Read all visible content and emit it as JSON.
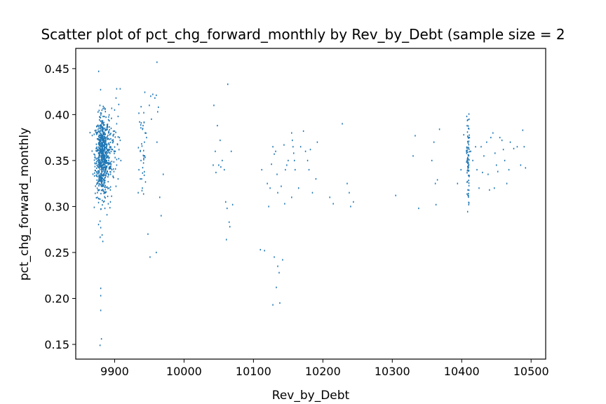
{
  "chart_data": {
    "type": "scatter",
    "title": "Scatter plot of pct_chg_forward_monthly by Rev_by_Debt (sample size = 2",
    "xlabel": "Rev_by_Debt",
    "ylabel": "pct_chg_forward_monthly",
    "xlim": [
      9844,
      10521
    ],
    "ylim": [
      0.134,
      0.472
    ],
    "xticks": [
      9900,
      10000,
      10100,
      10200,
      10300,
      10400,
      10500
    ],
    "yticks": [
      0.15,
      0.2,
      0.25,
      0.3,
      0.35,
      0.4,
      0.45
    ],
    "xtick_labels": [
      "9900",
      "10000",
      "10100",
      "10200",
      "10300",
      "10400",
      "10500"
    ],
    "ytick_labels": [
      "0.15",
      "0.20",
      "0.25",
      "0.30",
      "0.35",
      "0.40",
      "0.45"
    ],
    "grid": false,
    "marker_color": "#1f77b4",
    "points": [
      [
        9877,
        0.447
      ],
      [
        9880,
        0.211
      ],
      [
        9880,
        0.203
      ],
      [
        9880,
        0.187
      ],
      [
        9881,
        0.156
      ],
      [
        9879,
        0.149
      ],
      [
        9879,
        0.284
      ],
      [
        9880,
        0.277
      ],
      [
        9882,
        0.269
      ],
      [
        9883,
        0.262
      ],
      [
        9878,
        0.318
      ],
      [
        9884,
        0.305
      ],
      [
        9886,
        0.298
      ],
      [
        9890,
        0.311
      ],
      [
        9892,
        0.32
      ],
      [
        9894,
        0.305
      ],
      [
        9889,
        0.291
      ],
      [
        9903,
        0.428
      ],
      [
        9908,
        0.428
      ],
      [
        9902,
        0.418
      ],
      [
        9906,
        0.411
      ],
      [
        9900,
        0.405
      ],
      [
        9905,
        0.398
      ],
      [
        9903,
        0.39
      ],
      [
        9900,
        0.382
      ],
      [
        9907,
        0.375
      ],
      [
        9904,
        0.368
      ],
      [
        9901,
        0.36
      ],
      [
        9906,
        0.352
      ],
      [
        9903,
        0.345
      ],
      [
        9899,
        0.338
      ],
      [
        9905,
        0.33
      ],
      [
        9902,
        0.322
      ],
      [
        9908,
        0.372
      ],
      [
        9909,
        0.35
      ],
      [
        9895,
        0.385
      ],
      [
        9896,
        0.34
      ],
      [
        9897,
        0.362
      ],
      [
        9893,
        0.378
      ],
      [
        9936,
        0.392
      ],
      [
        9937,
        0.36
      ],
      [
        9938,
        0.35
      ],
      [
        9939,
        0.33
      ],
      [
        9940,
        0.32
      ],
      [
        9941,
        0.388
      ],
      [
        9942,
        0.402
      ],
      [
        9943,
        0.37
      ],
      [
        9944,
        0.38
      ],
      [
        9935,
        0.34
      ],
      [
        9934,
        0.315
      ],
      [
        9937,
        0.33
      ],
      [
        9952,
        0.42
      ],
      [
        9955,
        0.422
      ],
      [
        9958,
        0.418
      ],
      [
        9960,
        0.421
      ],
      [
        9961,
        0.457
      ],
      [
        9962,
        0.403
      ],
      [
        9963,
        0.408
      ],
      [
        9950,
        0.41
      ],
      [
        9953,
        0.395
      ],
      [
        9951,
        0.245
      ],
      [
        9960,
        0.25
      ],
      [
        9967,
        0.29
      ],
      [
        9965,
        0.31
      ],
      [
        9970,
        0.335
      ],
      [
        9961,
        0.37
      ],
      [
        9948,
        0.27
      ],
      [
        9946,
        0.375
      ],
      [
        10043,
        0.41
      ],
      [
        10048,
        0.388
      ],
      [
        10050,
        0.345
      ],
      [
        10052,
        0.372
      ],
      [
        10055,
        0.35
      ],
      [
        10045,
        0.36
      ],
      [
        10042,
        0.345
      ],
      [
        10058,
        0.34
      ],
      [
        10060,
        0.305
      ],
      [
        10061,
        0.264
      ],
      [
        10062,
        0.298
      ],
      [
        10063,
        0.433
      ],
      [
        10065,
        0.283
      ],
      [
        10066,
        0.278
      ],
      [
        10068,
        0.36
      ],
      [
        10070,
        0.302
      ],
      [
        10046,
        0.337
      ],
      [
        10053,
        0.343
      ],
      [
        10110,
        0.253
      ],
      [
        10116,
        0.252
      ],
      [
        10112,
        0.34
      ],
      [
        10120,
        0.325
      ],
      [
        10122,
        0.3
      ],
      [
        10124,
        0.32
      ],
      [
        10126,
        0.346
      ],
      [
        10128,
        0.365
      ],
      [
        10130,
        0.357
      ],
      [
        10132,
        0.36
      ],
      [
        10134,
        0.335
      ],
      [
        10135,
        0.315
      ],
      [
        10128,
        0.193
      ],
      [
        10133,
        0.212
      ],
      [
        10138,
        0.195
      ],
      [
        10137,
        0.228
      ],
      [
        10135,
        0.235
      ],
      [
        10130,
        0.245
      ],
      [
        10142,
        0.242
      ],
      [
        10146,
        0.34
      ],
      [
        10148,
        0.345
      ],
      [
        10150,
        0.35
      ],
      [
        10144,
        0.367
      ],
      [
        10140,
        0.322
      ],
      [
        10155,
        0.38
      ],
      [
        10156,
        0.372
      ],
      [
        10157,
        0.365
      ],
      [
        10158,
        0.358
      ],
      [
        10159,
        0.35
      ],
      [
        10160,
        0.34
      ],
      [
        10155,
        0.31
      ],
      [
        10165,
        0.32
      ],
      [
        10172,
        0.382
      ],
      [
        10168,
        0.365
      ],
      [
        10175,
        0.36
      ],
      [
        10178,
        0.35
      ],
      [
        10180,
        0.34
      ],
      [
        10182,
        0.362
      ],
      [
        10185,
        0.315
      ],
      [
        10190,
        0.33
      ],
      [
        10192,
        0.37
      ],
      [
        10145,
        0.303
      ],
      [
        10210,
        0.31
      ],
      [
        10215,
        0.303
      ],
      [
        10228,
        0.39
      ],
      [
        10235,
        0.325
      ],
      [
        10238,
        0.315
      ],
      [
        10240,
        0.3
      ],
      [
        10244,
        0.305
      ],
      [
        10305,
        0.312
      ],
      [
        10330,
        0.355
      ],
      [
        10333,
        0.377
      ],
      [
        10338,
        0.298
      ],
      [
        10357,
        0.35
      ],
      [
        10362,
        0.325
      ],
      [
        10365,
        0.329
      ],
      [
        10368,
        0.384
      ],
      [
        10363,
        0.302
      ],
      [
        10360,
        0.37
      ],
      [
        10394,
        0.325
      ],
      [
        10399,
        0.34
      ],
      [
        10403,
        0.378
      ],
      [
        10413,
        0.36
      ],
      [
        10416,
        0.35
      ],
      [
        10420,
        0.365
      ],
      [
        10422,
        0.34
      ],
      [
        10425,
        0.32
      ],
      [
        10428,
        0.365
      ],
      [
        10430,
        0.337
      ],
      [
        10432,
        0.355
      ],
      [
        10436,
        0.37
      ],
      [
        10438,
        0.335
      ],
      [
        10440,
        0.318
      ],
      [
        10442,
        0.375
      ],
      [
        10445,
        0.38
      ],
      [
        10448,
        0.358
      ],
      [
        10450,
        0.345
      ],
      [
        10452,
        0.338
      ],
      [
        10455,
        0.375
      ],
      [
        10458,
        0.372
      ],
      [
        10460,
        0.362
      ],
      [
        10462,
        0.35
      ],
      [
        10465,
        0.325
      ],
      [
        10468,
        0.34
      ],
      [
        10470,
        0.37
      ],
      [
        10475,
        0.363
      ],
      [
        10480,
        0.365
      ],
      [
        10485,
        0.345
      ],
      [
        10488,
        0.383
      ],
      [
        10490,
        0.365
      ],
      [
        10492,
        0.342
      ],
      [
        10447,
        0.32
      ]
    ],
    "dense_clusters": [
      {
        "x_mean": 9882,
        "x_spread": 5,
        "y_mean": 0.355,
        "y_spread": 0.022,
        "count": 650
      },
      {
        "x_mean": 9892,
        "x_spread": 6,
        "y_mean": 0.36,
        "y_spread": 0.02,
        "count": 110
      },
      {
        "x_mean": 10409,
        "x_spread": 1,
        "y_mean": 0.35,
        "y_spread": 0.025,
        "count": 80
      },
      {
        "x_mean": 9941,
        "x_spread": 3,
        "y_mean": 0.36,
        "y_spread": 0.03,
        "count": 30
      }
    ]
  }
}
